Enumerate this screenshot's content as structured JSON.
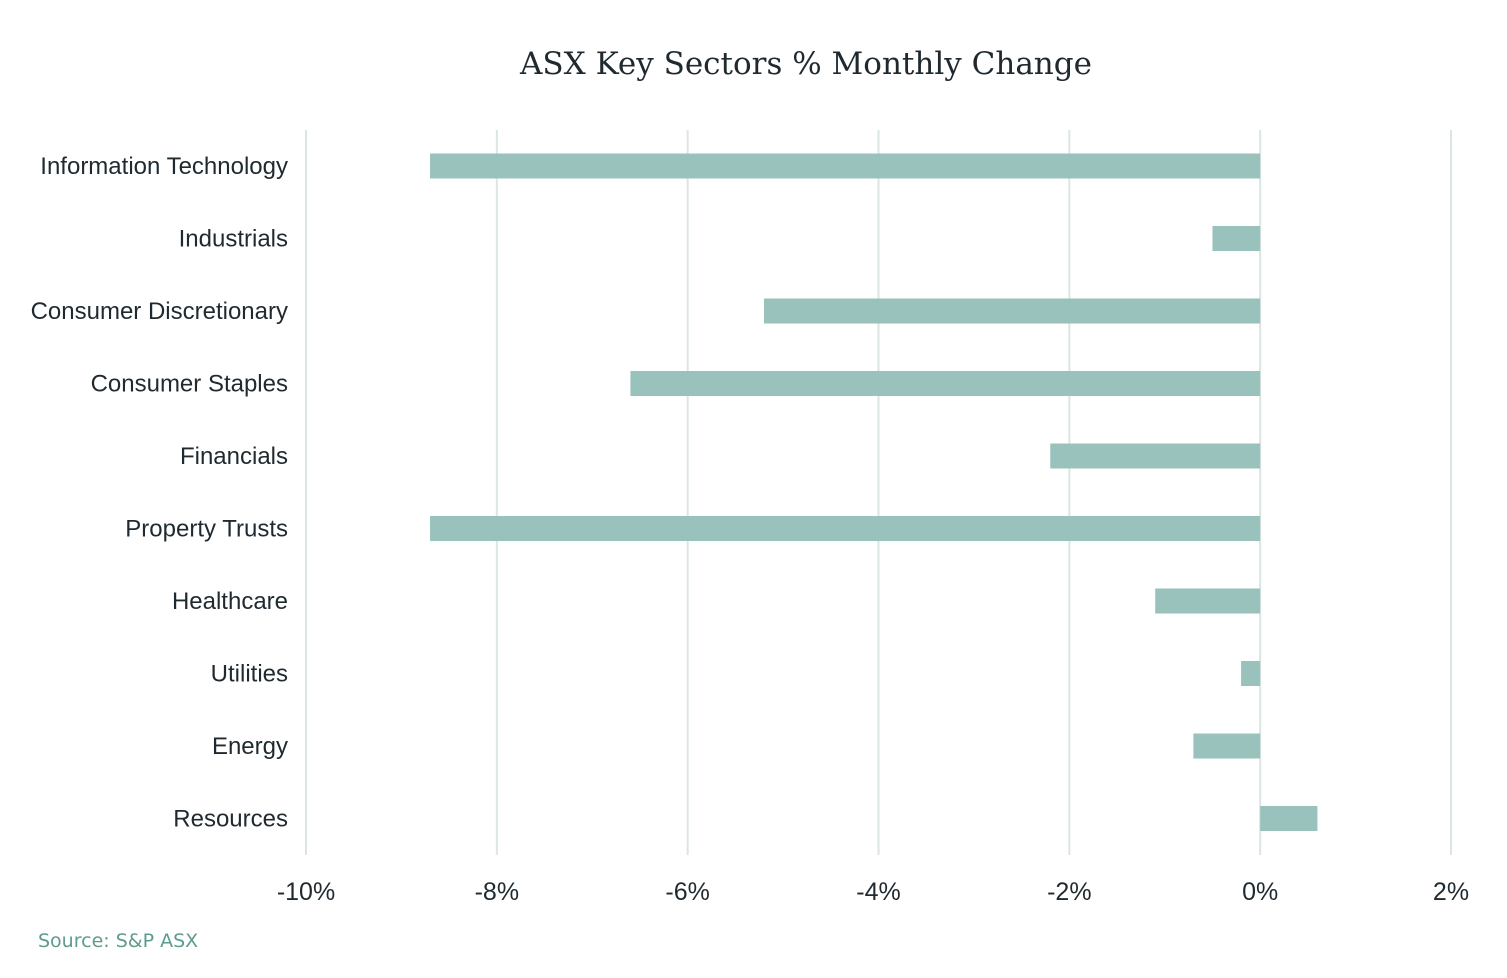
{
  "chart_data": {
    "type": "bar",
    "orientation": "horizontal",
    "title": "ASX Key Sectors % Monthly Change",
    "categories": [
      "Information Technology",
      "Industrials",
      "Consumer Discretionary",
      "Consumer Staples",
      "Financials",
      "Property Trusts",
      "Healthcare",
      "Utilities",
      "Energy",
      "Resources"
    ],
    "values": [
      -8.7,
      -0.5,
      -5.2,
      -6.6,
      -2.2,
      -8.7,
      -1.1,
      -0.2,
      -0.7,
      0.6
    ],
    "xlim": [
      -10,
      2
    ],
    "xticks": [
      -10,
      -8,
      -6,
      -4,
      -2,
      0,
      2
    ],
    "xtick_labels": [
      "-10%",
      "-8%",
      "-6%",
      "-4%",
      "-2%",
      "0%",
      "2%"
    ],
    "grid": "vertical",
    "bar_color": "#98c2bb",
    "grid_color": "#dbe6e3"
  },
  "source": "Source: S&P ASX"
}
